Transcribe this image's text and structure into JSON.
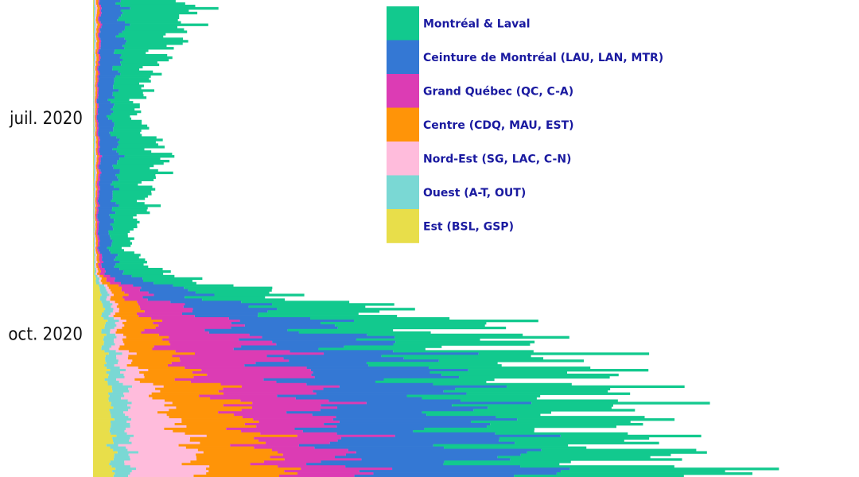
{
  "chart_data": {
    "type": "bar",
    "orientation": "horizontal",
    "stacked": true,
    "title": "",
    "xlabel": "",
    "ylabel": "",
    "y_axis_type": "date",
    "y_range": [
      "2020-05-12",
      "2020-11-30"
    ],
    "x_range": [
      0,
      1800
    ],
    "y_ticks": [
      {
        "date": "2020-07-01",
        "label": "juil. 2020"
      },
      {
        "date": "2020-10-01",
        "label": "oct. 2020"
      }
    ],
    "legend_position": "top-right",
    "grid": false,
    "series": [
      {
        "name": "Est (BSL, GSP)",
        "color": "#e8de4a"
      },
      {
        "name": "Ouest (A-T, OUT)",
        "color": "#7ad8d4"
      },
      {
        "name": "Nord-Est (SG, LAC, C-N)",
        "color": "#ffbcdc"
      },
      {
        "name": "Centre (CDQ, MAU, EST)",
        "color": "#ff9408"
      },
      {
        "name": "Grand Québec (QC, C-A)",
        "color": "#dc3cb4"
      },
      {
        "name": "Ceinture de Montréal (LAU, LAN, MTR)",
        "color": "#3478d4"
      },
      {
        "name": "Montréal & Laval",
        "color": "#12c98e"
      }
    ],
    "legend_order": [
      "Montréal & Laval",
      "Ceinture de Montréal (LAU, LAN, MTR)",
      "Grand Québec (QC, C-A)",
      "Centre (CDQ, MAU, EST)",
      "Nord-Est (SG, LAC, C-N)",
      "Ouest (A-T, OUT)",
      "Est (BSL, GSP)"
    ],
    "daily_cases": [
      {
        "date": "2020-05-12",
        "values": [
          2,
          3,
          4,
          6,
          4,
          55,
          180
        ]
      },
      {
        "date": "2020-06-01",
        "values": [
          2,
          3,
          3,
          5,
          4,
          50,
          110
        ]
      },
      {
        "date": "2020-06-15",
        "values": [
          1,
          2,
          3,
          4,
          3,
          40,
          80
        ]
      },
      {
        "date": "2020-07-01",
        "values": [
          1,
          2,
          2,
          3,
          3,
          30,
          60
        ]
      },
      {
        "date": "2020-07-15",
        "values": [
          2,
          3,
          3,
          4,
          5,
          45,
          110
        ]
      },
      {
        "date": "2020-07-25",
        "values": [
          2,
          3,
          3,
          4,
          5,
          40,
          100
        ]
      },
      {
        "date": "2020-08-10",
        "values": [
          1,
          2,
          2,
          3,
          4,
          35,
          70
        ]
      },
      {
        "date": "2020-08-25",
        "values": [
          2,
          2,
          3,
          4,
          4,
          25,
          40
        ]
      },
      {
        "date": "2020-09-05",
        "values": [
          3,
          4,
          4,
          6,
          12,
          45,
          100
        ]
      },
      {
        "date": "2020-09-15",
        "values": [
          20,
          20,
          10,
          40,
          60,
          140,
          210
        ]
      },
      {
        "date": "2020-09-25",
        "values": [
          30,
          25,
          15,
          70,
          180,
          230,
          380
        ]
      },
      {
        "date": "2020-10-05",
        "values": [
          25,
          25,
          20,
          100,
          220,
          270,
          300
        ]
      },
      {
        "date": "2020-10-15",
        "values": [
          35,
          30,
          40,
          120,
          260,
          320,
          360
        ]
      },
      {
        "date": "2020-10-25",
        "values": [
          40,
          40,
          70,
          150,
          230,
          330,
          360
        ]
      },
      {
        "date": "2020-11-05",
        "values": [
          45,
          40,
          110,
          170,
          200,
          350,
          330
        ]
      },
      {
        "date": "2020-11-15",
        "values": [
          45,
          40,
          150,
          170,
          180,
          380,
          340
        ]
      },
      {
        "date": "2020-11-30",
        "values": [
          45,
          40,
          180,
          190,
          170,
          440,
          420
        ]
      }
    ]
  }
}
